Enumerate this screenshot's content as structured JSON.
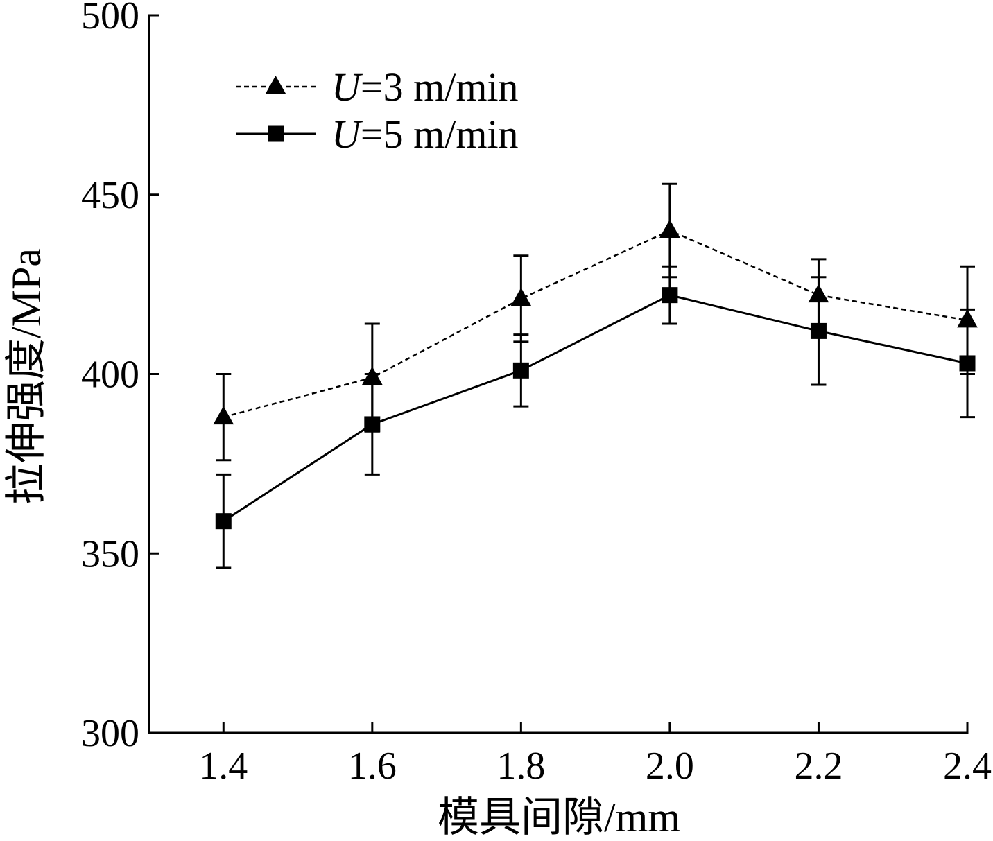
{
  "chart_data": {
    "type": "line",
    "xlabel": "模具间隙/mm",
    "ylabel": "拉伸强度/MPa",
    "x": [
      1.4,
      1.6,
      1.8,
      2.0,
      2.2,
      2.4
    ],
    "xticks": [
      "1.4",
      "1.6",
      "1.8",
      "2.0",
      "2.2",
      "2.4"
    ],
    "yticks": [
      "300",
      "350",
      "400",
      "450",
      "500"
    ],
    "xlim": [
      1.3,
      2.4
    ],
    "ylim": [
      300,
      500
    ],
    "grid": false,
    "legend": "top-left",
    "series": [
      {
        "name": "U=3 m/min",
        "values": [
          388,
          399,
          421,
          440,
          422,
          415
        ],
        "errors": [
          12,
          15,
          12,
          13,
          10,
          15
        ],
        "line_style": "dashed",
        "marker": "triangle",
        "color": "#000000"
      },
      {
        "name": "U=5 m/min",
        "values": [
          359,
          386,
          401,
          422,
          412,
          403
        ],
        "errors": [
          13,
          14,
          10,
          8,
          15,
          15
        ],
        "line_style": "solid",
        "marker": "square",
        "color": "#000000"
      }
    ]
  }
}
